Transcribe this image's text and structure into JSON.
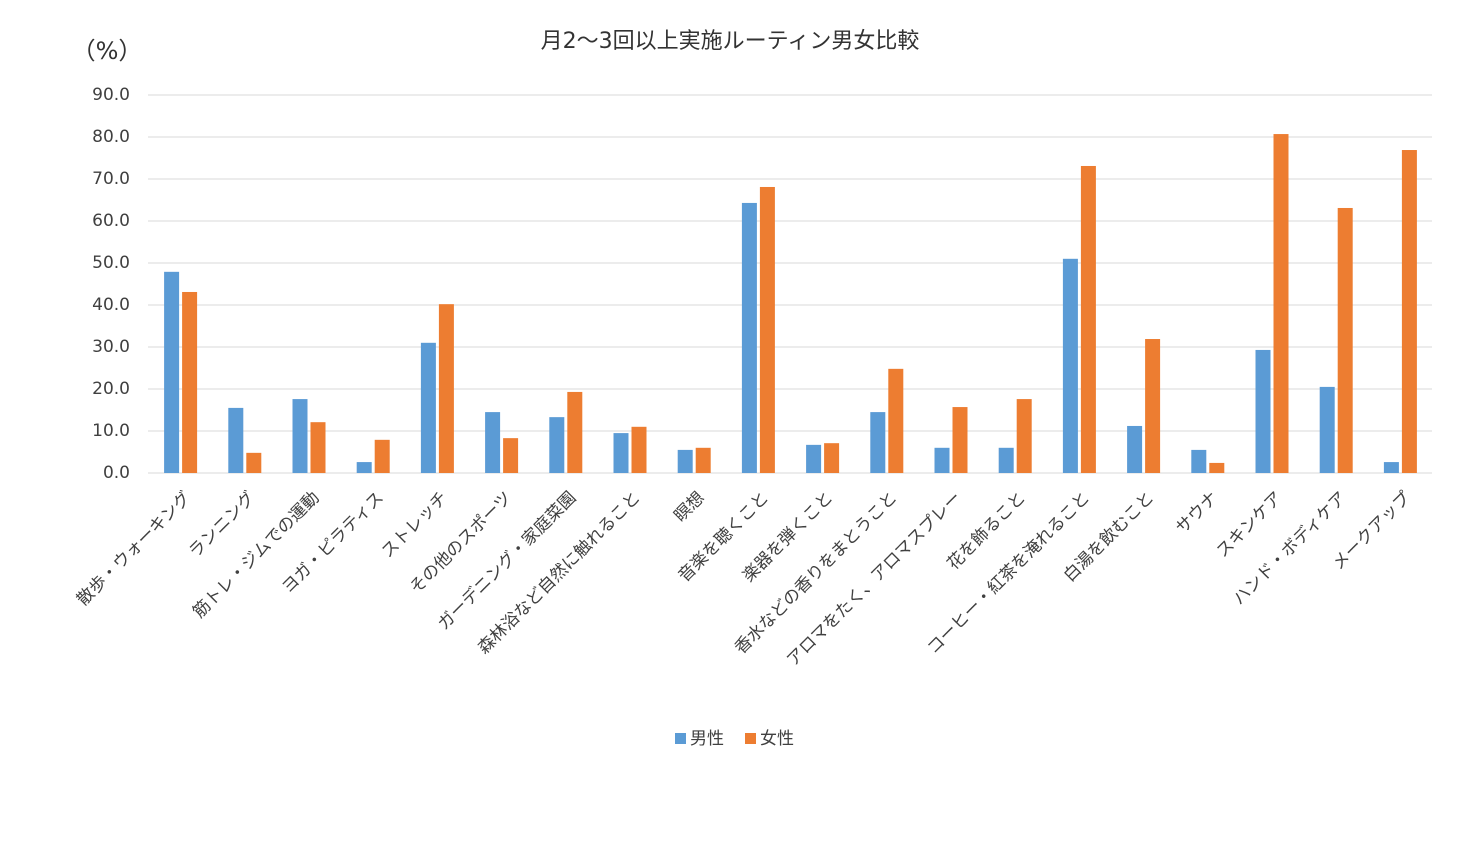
{
  "chart_data": {
    "type": "bar",
    "title": "月2〜3回以上実施ルーティン男女比較",
    "y_label": "（%）",
    "categories": [
      "散歩・ウォーキング",
      "ランニング",
      "筋トレ・ジムでの運動",
      "ヨガ・ピラティス",
      "ストレッチ",
      "その他のスポーツ",
      "ガーデニング・家庭菜園",
      "森林浴など自然に触れること",
      "瞑想",
      "音楽を聴くこと",
      "楽器を弾くこと",
      "香水などの香りをまとうこと",
      "アロマをたく、アロマスプレー",
      "花を飾ること",
      "コーヒー・紅茶を淹れること",
      "白湯を飲むこと",
      "サウナ",
      "スキンケア",
      "ハンド・ボディケア",
      "メークアップ"
    ],
    "series": [
      {
        "name": "男性",
        "color": "#5b9bd5",
        "values": [
          47.9,
          15.5,
          17.6,
          2.6,
          31.0,
          14.5,
          13.3,
          9.5,
          5.5,
          64.3,
          6.7,
          14.5,
          6.0,
          6.0,
          51.0,
          11.2,
          5.5,
          29.3,
          20.5,
          2.6
        ]
      },
      {
        "name": "女性",
        "color": "#ed7d31",
        "values": [
          43.1,
          4.8,
          12.1,
          7.9,
          40.2,
          8.3,
          19.3,
          11.0,
          6.0,
          68.1,
          7.1,
          24.8,
          15.7,
          17.6,
          73.1,
          31.9,
          2.4,
          80.7,
          63.1,
          76.9
        ]
      }
    ],
    "ylim": [
      0,
      90
    ],
    "yticks": [
      {
        "value": 0,
        "label": "0.0"
      },
      {
        "value": 10,
        "label": "10.0"
      },
      {
        "value": 20,
        "label": "20.0"
      },
      {
        "value": 30,
        "label": "30.0"
      },
      {
        "value": 40,
        "label": "40.0"
      },
      {
        "value": 50,
        "label": "50.0"
      },
      {
        "value": 60,
        "label": "60.0"
      },
      {
        "value": 70,
        "label": "70.0"
      },
      {
        "value": 80,
        "label": "80.0"
      },
      {
        "value": 90,
        "label": "90.0"
      }
    ],
    "grid": true,
    "legend": "bottom"
  }
}
